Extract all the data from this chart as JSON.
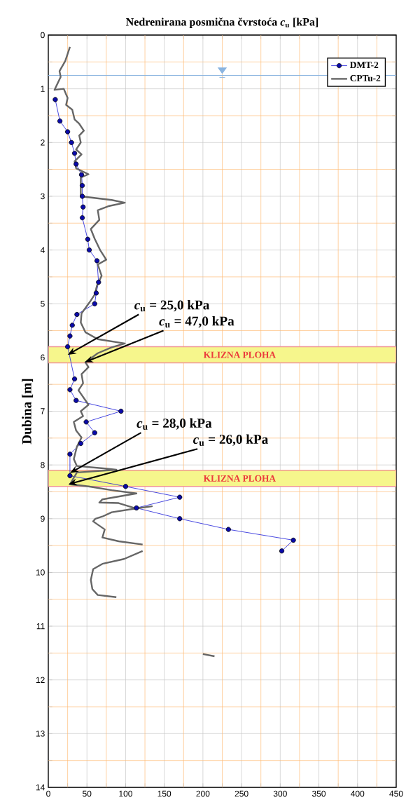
{
  "chart_data": {
    "type": "line",
    "title": "Nedrenirana posmična čvrstoća *c*$_{u}$ [kPa]",
    "ylabel": "Dubina [m]",
    "xlim": [
      0,
      450
    ],
    "xticks": [
      0,
      {
        "value": 25,
        "label": null
      },
      50,
      {
        "value": 75,
        "label": null
      },
      100,
      {
        "value": 125,
        "label": null
      },
      150,
      {
        "value": 175,
        "label": null
      },
      200,
      {
        "value": 225,
        "label": null
      },
      250,
      {
        "value": 275,
        "label": null
      },
      300,
      {
        "value": 325,
        "label": null
      },
      350,
      {
        "value": 375,
        "label": null
      },
      400,
      {
        "value": 425,
        "label": null
      },
      450
    ],
    "ylim": [
      14,
      0
    ],
    "yticks": [
      0,
      {
        "value": 0.5,
        "label": null
      },
      1,
      {
        "value": 1.5,
        "label": null
      },
      2,
      {
        "value": 2.5,
        "label": null
      },
      3,
      {
        "value": 3.5,
        "label": null
      },
      4,
      {
        "value": 4.5,
        "label": null
      },
      5,
      {
        "value": 5.5,
        "label": null
      },
      6,
      {
        "value": 6.5,
        "label": null
      },
      7,
      {
        "value": 7.5,
        "label": null
      },
      8,
      {
        "value": 8.5,
        "label": null
      },
      9,
      {
        "value": 9.5,
        "label": null
      },
      10,
      {
        "value": 10.5,
        "label": null
      },
      11,
      {
        "value": 11.5,
        "label": null
      },
      12,
      {
        "value": 12.5,
        "label": null
      },
      13,
      {
        "value": 13.5,
        "label": null
      },
      14
    ],
    "grid": true,
    "legend": "top right",
    "series": [
      {
        "name": "DMT-2",
        "color": "#1a1ad8",
        "marker": "circle",
        "x": [
          9,
          15,
          25,
          30,
          34,
          36,
          43,
          44,
          44,
          45,
          44,
          51,
          53,
          63,
          65,
          62,
          60,
          37,
          31,
          28,
          25,
          34,
          28,
          36,
          94,
          49,
          60,
          42,
          28,
          28,
          100,
          170,
          114,
          170,
          233,
          317,
          302
        ],
        "values": [
          1.2,
          1.6,
          1.8,
          2.0,
          2.2,
          2.4,
          2.6,
          2.8,
          3.0,
          3.2,
          3.4,
          3.8,
          4.0,
          4.2,
          4.6,
          4.8,
          5.0,
          5.2,
          5.4,
          5.6,
          5.8,
          6.4,
          6.6,
          6.8,
          7.0,
          7.2,
          7.4,
          7.6,
          7.8,
          8.2,
          8.4,
          8.6,
          8.8,
          9.0,
          9.2,
          9.4,
          9.6
        ]
      },
      {
        "name": "CPTu-2",
        "color": "#666666",
        "marker": "none",
        "x": [
          28,
          22,
          14.5,
          16,
          8,
          20,
          25,
          23,
          31,
          34,
          40,
          46,
          40,
          42,
          36,
          43,
          34,
          36,
          52,
          42,
          42,
          82,
          99,
          79,
          64,
          66,
          55,
          60,
          67,
          75,
          64,
          69,
          63,
          60,
          55,
          52,
          43,
          42,
          48,
          64,
          99,
          82,
          64,
          48,
          52,
          43,
          45,
          39,
          52,
          42,
          45,
          33,
          36,
          43,
          37,
          33,
          37,
          76,
          88,
          37,
          28,
          52,
          82,
          114,
          70,
          66,
          91,
          113,
          134,
          113,
          82,
          70,
          61,
          58,
          73,
          70,
          91,
          122,
          null,
          122,
          98,
          70,
          58,
          55,
          57,
          64,
          88,
          null,
          200,
          215
        ],
        "values": [
          0.22,
          0.48,
          0.67,
          0.78,
          1.02,
          1.0,
          1.17,
          1.3,
          1.39,
          1.57,
          1.65,
          1.78,
          1.87,
          2.0,
          2.13,
          2.22,
          2.35,
          2.48,
          2.59,
          2.65,
          3.0,
          3.07,
          3.12,
          3.18,
          3.26,
          3.44,
          3.61,
          3.79,
          4.0,
          4.18,
          4.27,
          4.48,
          4.66,
          4.83,
          4.94,
          5.0,
          5.18,
          5.35,
          5.53,
          5.66,
          5.74,
          5.81,
          5.92,
          6.09,
          6.18,
          6.31,
          6.48,
          6.61,
          6.88,
          7.0,
          7.09,
          7.2,
          7.36,
          7.49,
          7.66,
          7.89,
          8.02,
          8.07,
          8.09,
          8.14,
          8.36,
          8.4,
          8.47,
          8.53,
          8.64,
          8.7,
          8.71,
          8.81,
          8.77,
          8.81,
          8.88,
          8.96,
          9.0,
          9.05,
          9.2,
          9.35,
          9.42,
          9.48,
          null,
          9.6,
          9.75,
          9.84,
          9.94,
          10.14,
          10.31,
          10.42,
          10.46,
          null,
          11.52,
          11.56
        ]
      }
    ],
    "ref_lines": [
      {
        "axis": "y",
        "value": 0.75,
        "color": "#8ab4e0"
      }
    ],
    "bands": [
      {
        "axis": "y",
        "from": 5.8,
        "to": 6.1,
        "label": "KLIZNA PLOHA",
        "color": "#f6f68c"
      },
      {
        "axis": "y",
        "from": 8.1,
        "to": 8.4,
        "label": "KLIZNA PLOHA",
        "color": "#f6f68c"
      }
    ],
    "annotations": [
      {
        "text": "*c*$_{u}$ = 25,0 kPa",
        "x": 25,
        "y": 5.95
      },
      {
        "text": "*c*$_{u}$ = 47,0 kPa",
        "x": 47,
        "y": 6.09
      },
      {
        "text": "*c*$_{u}$ = 28,0 kPa",
        "x": 28,
        "y": 8.15
      },
      {
        "text": "*c*$_{u}$ = 26,0 kPa",
        "x": 26,
        "y": 8.36
      }
    ]
  }
}
